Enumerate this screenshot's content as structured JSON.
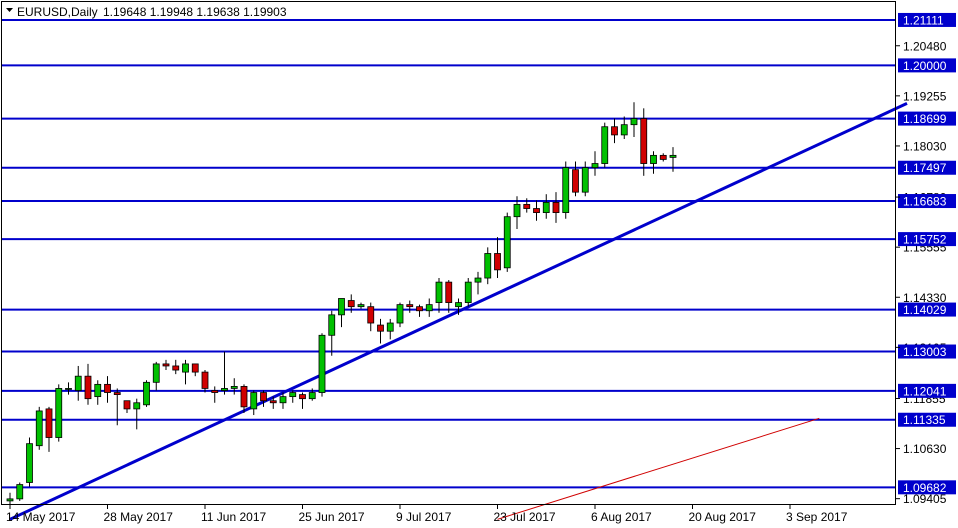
{
  "header": {
    "menu_icon": "triangle-down-icon",
    "symbol_label": "EURUSD,Daily",
    "ohlc_text": "1.19648 1.19948 1.19638 1.19903"
  },
  "colors": {
    "background": "#ffffff",
    "frame": "#000000",
    "up_candle": "#00c000",
    "down_candle": "#d00000",
    "level_line": "#0000cc",
    "level_tag": "#0000cc",
    "level_tag_text": "#ffffff",
    "trendline_main": "#0000cc",
    "trendline_secondary": "#d00000"
  },
  "chart_data": {
    "type": "candlestick",
    "symbol": "EURUSD",
    "timeframe": "Daily",
    "ylim": [
      1.0925,
      1.2155
    ],
    "yticks": [
      "1.20480",
      "1.19255",
      "1.18030",
      "1.16780",
      "1.15555",
      "1.14330",
      "1.13105",
      "1.11855",
      "1.10630",
      "1.09405"
    ],
    "xticks": [
      "14 May 2017",
      "28 May 2017",
      "11 Jun 2017",
      "25 Jun 2017",
      "9 Jul 2017",
      "23 Jul 2017",
      "6 Aug 2017",
      "20 Aug 2017",
      "3 Sep 2017"
    ],
    "xtick_bar_index": [
      0,
      10,
      20,
      30,
      40,
      50,
      60,
      70,
      80
    ],
    "levels": [
      "1.21111",
      "1.20000",
      "1.18699",
      "1.17497",
      "1.16683",
      "1.15752",
      "1.14029",
      "1.13003",
      "1.12041",
      "1.11335",
      "1.09682"
    ],
    "trendlines": [
      {
        "color": "blue",
        "from": {
          "bar": 0,
          "price": 1.089
        },
        "to": {
          "bar": 92,
          "price": 1.1907
        }
      },
      {
        "color": "red",
        "from": {
          "bar": 50,
          "price": 1.089
        },
        "to": {
          "bar": 83,
          "price": 1.1137
        }
      }
    ],
    "candles": [
      [
        1.0935,
        1.0955,
        1.0925,
        1.094
      ],
      [
        1.094,
        1.098,
        1.0935,
        1.0975
      ],
      [
        1.098,
        1.109,
        1.097,
        1.1075
      ],
      [
        1.107,
        1.1165,
        1.106,
        1.1155
      ],
      [
        1.116,
        1.1165,
        1.1055,
        1.109
      ],
      [
        1.109,
        1.122,
        1.108,
        1.121
      ],
      [
        1.121,
        1.1225,
        1.1195,
        1.121
      ],
      [
        1.1205,
        1.1265,
        1.118,
        1.124
      ],
      [
        1.124,
        1.127,
        1.117,
        1.1185
      ],
      [
        1.119,
        1.123,
        1.117,
        1.122
      ],
      [
        1.122,
        1.124,
        1.1175,
        1.12
      ],
      [
        1.12,
        1.121,
        1.112,
        1.1195
      ],
      [
        1.118,
        1.1175,
        1.115,
        1.116
      ],
      [
        1.116,
        1.1185,
        1.111,
        1.1175
      ],
      [
        1.117,
        1.123,
        1.1165,
        1.1225
      ],
      [
        1.1225,
        1.1275,
        1.1205,
        1.127
      ],
      [
        1.127,
        1.128,
        1.1255,
        1.1265
      ],
      [
        1.1265,
        1.128,
        1.1245,
        1.1255
      ],
      [
        1.125,
        1.128,
        1.122,
        1.127
      ],
      [
        1.127,
        1.1265,
        1.124,
        1.125
      ],
      [
        1.125,
        1.1255,
        1.12,
        1.121
      ],
      [
        1.1205,
        1.1215,
        1.1175,
        1.12
      ],
      [
        1.1205,
        1.13,
        1.1195,
        1.121
      ],
      [
        1.121,
        1.1235,
        1.1195,
        1.1215
      ],
      [
        1.1215,
        1.122,
        1.115,
        1.1165
      ],
      [
        1.116,
        1.1205,
        1.1145,
        1.12
      ],
      [
        1.12,
        1.1205,
        1.1165,
        1.118
      ],
      [
        1.118,
        1.119,
        1.116,
        1.1175
      ],
      [
        1.1175,
        1.12,
        1.116,
        1.119
      ],
      [
        1.119,
        1.1205,
        1.1175,
        1.12
      ],
      [
        1.1195,
        1.12,
        1.116,
        1.1185
      ],
      [
        1.1185,
        1.121,
        1.118,
        1.12
      ],
      [
        1.12,
        1.1345,
        1.119,
        1.134
      ],
      [
        1.134,
        1.14,
        1.129,
        1.139
      ],
      [
        1.139,
        1.143,
        1.136,
        1.143
      ],
      [
        1.1425,
        1.144,
        1.1395,
        1.141
      ],
      [
        1.141,
        1.142,
        1.1405,
        1.1415
      ],
      [
        1.141,
        1.142,
        1.135,
        1.137
      ],
      [
        1.1365,
        1.138,
        1.132,
        1.135
      ],
      [
        1.135,
        1.138,
        1.133,
        1.137
      ],
      [
        1.137,
        1.142,
        1.136,
        1.1415
      ],
      [
        1.1415,
        1.1425,
        1.1395,
        1.141
      ],
      [
        1.141,
        1.1415,
        1.1385,
        1.14
      ],
      [
        1.14,
        1.143,
        1.1385,
        1.1415
      ],
      [
        1.142,
        1.148,
        1.1395,
        1.147
      ],
      [
        1.147,
        1.1475,
        1.1395,
        1.142
      ],
      [
        1.141,
        1.143,
        1.139,
        1.142
      ],
      [
        1.142,
        1.148,
        1.141,
        1.147
      ],
      [
        1.147,
        1.1495,
        1.144,
        1.148
      ],
      [
        1.148,
        1.1555,
        1.1465,
        1.154
      ],
      [
        1.154,
        1.158,
        1.148,
        1.15
      ],
      [
        1.1505,
        1.164,
        1.1495,
        1.163
      ],
      [
        1.163,
        1.168,
        1.16,
        1.166
      ],
      [
        1.166,
        1.1675,
        1.164,
        1.165
      ],
      [
        1.165,
        1.167,
        1.162,
        1.164
      ],
      [
        1.164,
        1.1685,
        1.1625,
        1.1665
      ],
      [
        1.1665,
        1.169,
        1.1615,
        1.164
      ],
      [
        1.164,
        1.1765,
        1.1625,
        1.175
      ],
      [
        1.1745,
        1.1765,
        1.168,
        1.169
      ],
      [
        1.169,
        1.1765,
        1.168,
        1.175
      ],
      [
        1.175,
        1.179,
        1.173,
        1.176
      ],
      [
        1.176,
        1.186,
        1.175,
        1.185
      ],
      [
        1.185,
        1.187,
        1.181,
        1.183
      ],
      [
        1.183,
        1.1875,
        1.182,
        1.1855
      ],
      [
        1.1855,
        1.191,
        1.1825,
        1.187
      ],
      [
        1.187,
        1.1895,
        1.173,
        1.176
      ],
      [
        1.176,
        1.179,
        1.1735,
        1.178
      ],
      [
        1.178,
        1.1785,
        1.1765,
        1.177
      ],
      [
        1.1775,
        1.18,
        1.174,
        1.178
      ]
    ]
  },
  "price_axis": {
    "levels": [
      {
        "label": "1.21111",
        "price": 1.21111
      },
      {
        "label": "1.20000",
        "price": 1.2
      },
      {
        "label": "1.18699",
        "price": 1.18699
      },
      {
        "label": "1.17497",
        "price": 1.17497
      },
      {
        "label": "1.16683",
        "price": 1.16683
      },
      {
        "label": "1.15752",
        "price": 1.15752
      },
      {
        "label": "1.14029",
        "price": 1.14029
      },
      {
        "label": "1.13003",
        "price": 1.13003
      },
      {
        "label": "1.12041",
        "price": 1.12041
      },
      {
        "label": "1.11335",
        "price": 1.11335
      },
      {
        "label": "1.09682",
        "price": 1.09682
      }
    ],
    "ticks": [
      {
        "label": "1.20480",
        "price": 1.2048
      },
      {
        "label": "1.19255",
        "price": 1.19255
      },
      {
        "label": "1.18030",
        "price": 1.1803
      },
      {
        "label": "1.16780",
        "price": 1.1678
      },
      {
        "label": "1.15555",
        "price": 1.15555
      },
      {
        "label": "1.14330",
        "price": 1.1433
      },
      {
        "label": "1.13105",
        "price": 1.13105
      },
      {
        "label": "1.11855",
        "price": 1.11855
      },
      {
        "label": "1.10630",
        "price": 1.1063
      },
      {
        "label": "1.09405",
        "price": 1.09405
      }
    ]
  }
}
